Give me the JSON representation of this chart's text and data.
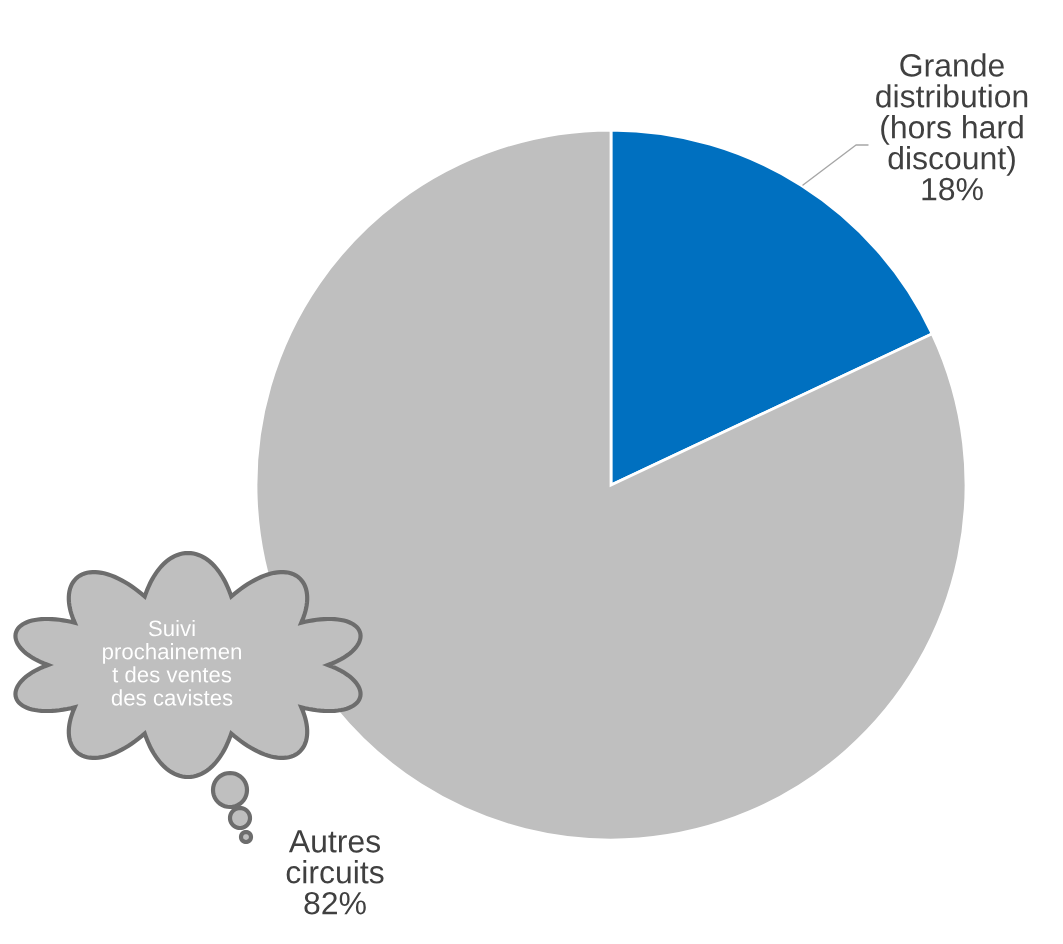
{
  "chart_data": {
    "type": "pie",
    "categories": [
      "Grande\ndistribution\n(hors hard\ndiscount)",
      "Autres\ncircuits"
    ],
    "values": [
      18,
      82
    ],
    "colors": [
      "#0070c0",
      "#bfbfbf"
    ],
    "value_labels": [
      "18%",
      "82%"
    ],
    "annotations": [
      "Suivi\nprochainemen\nt des ventes\ndes cavistes"
    ]
  }
}
